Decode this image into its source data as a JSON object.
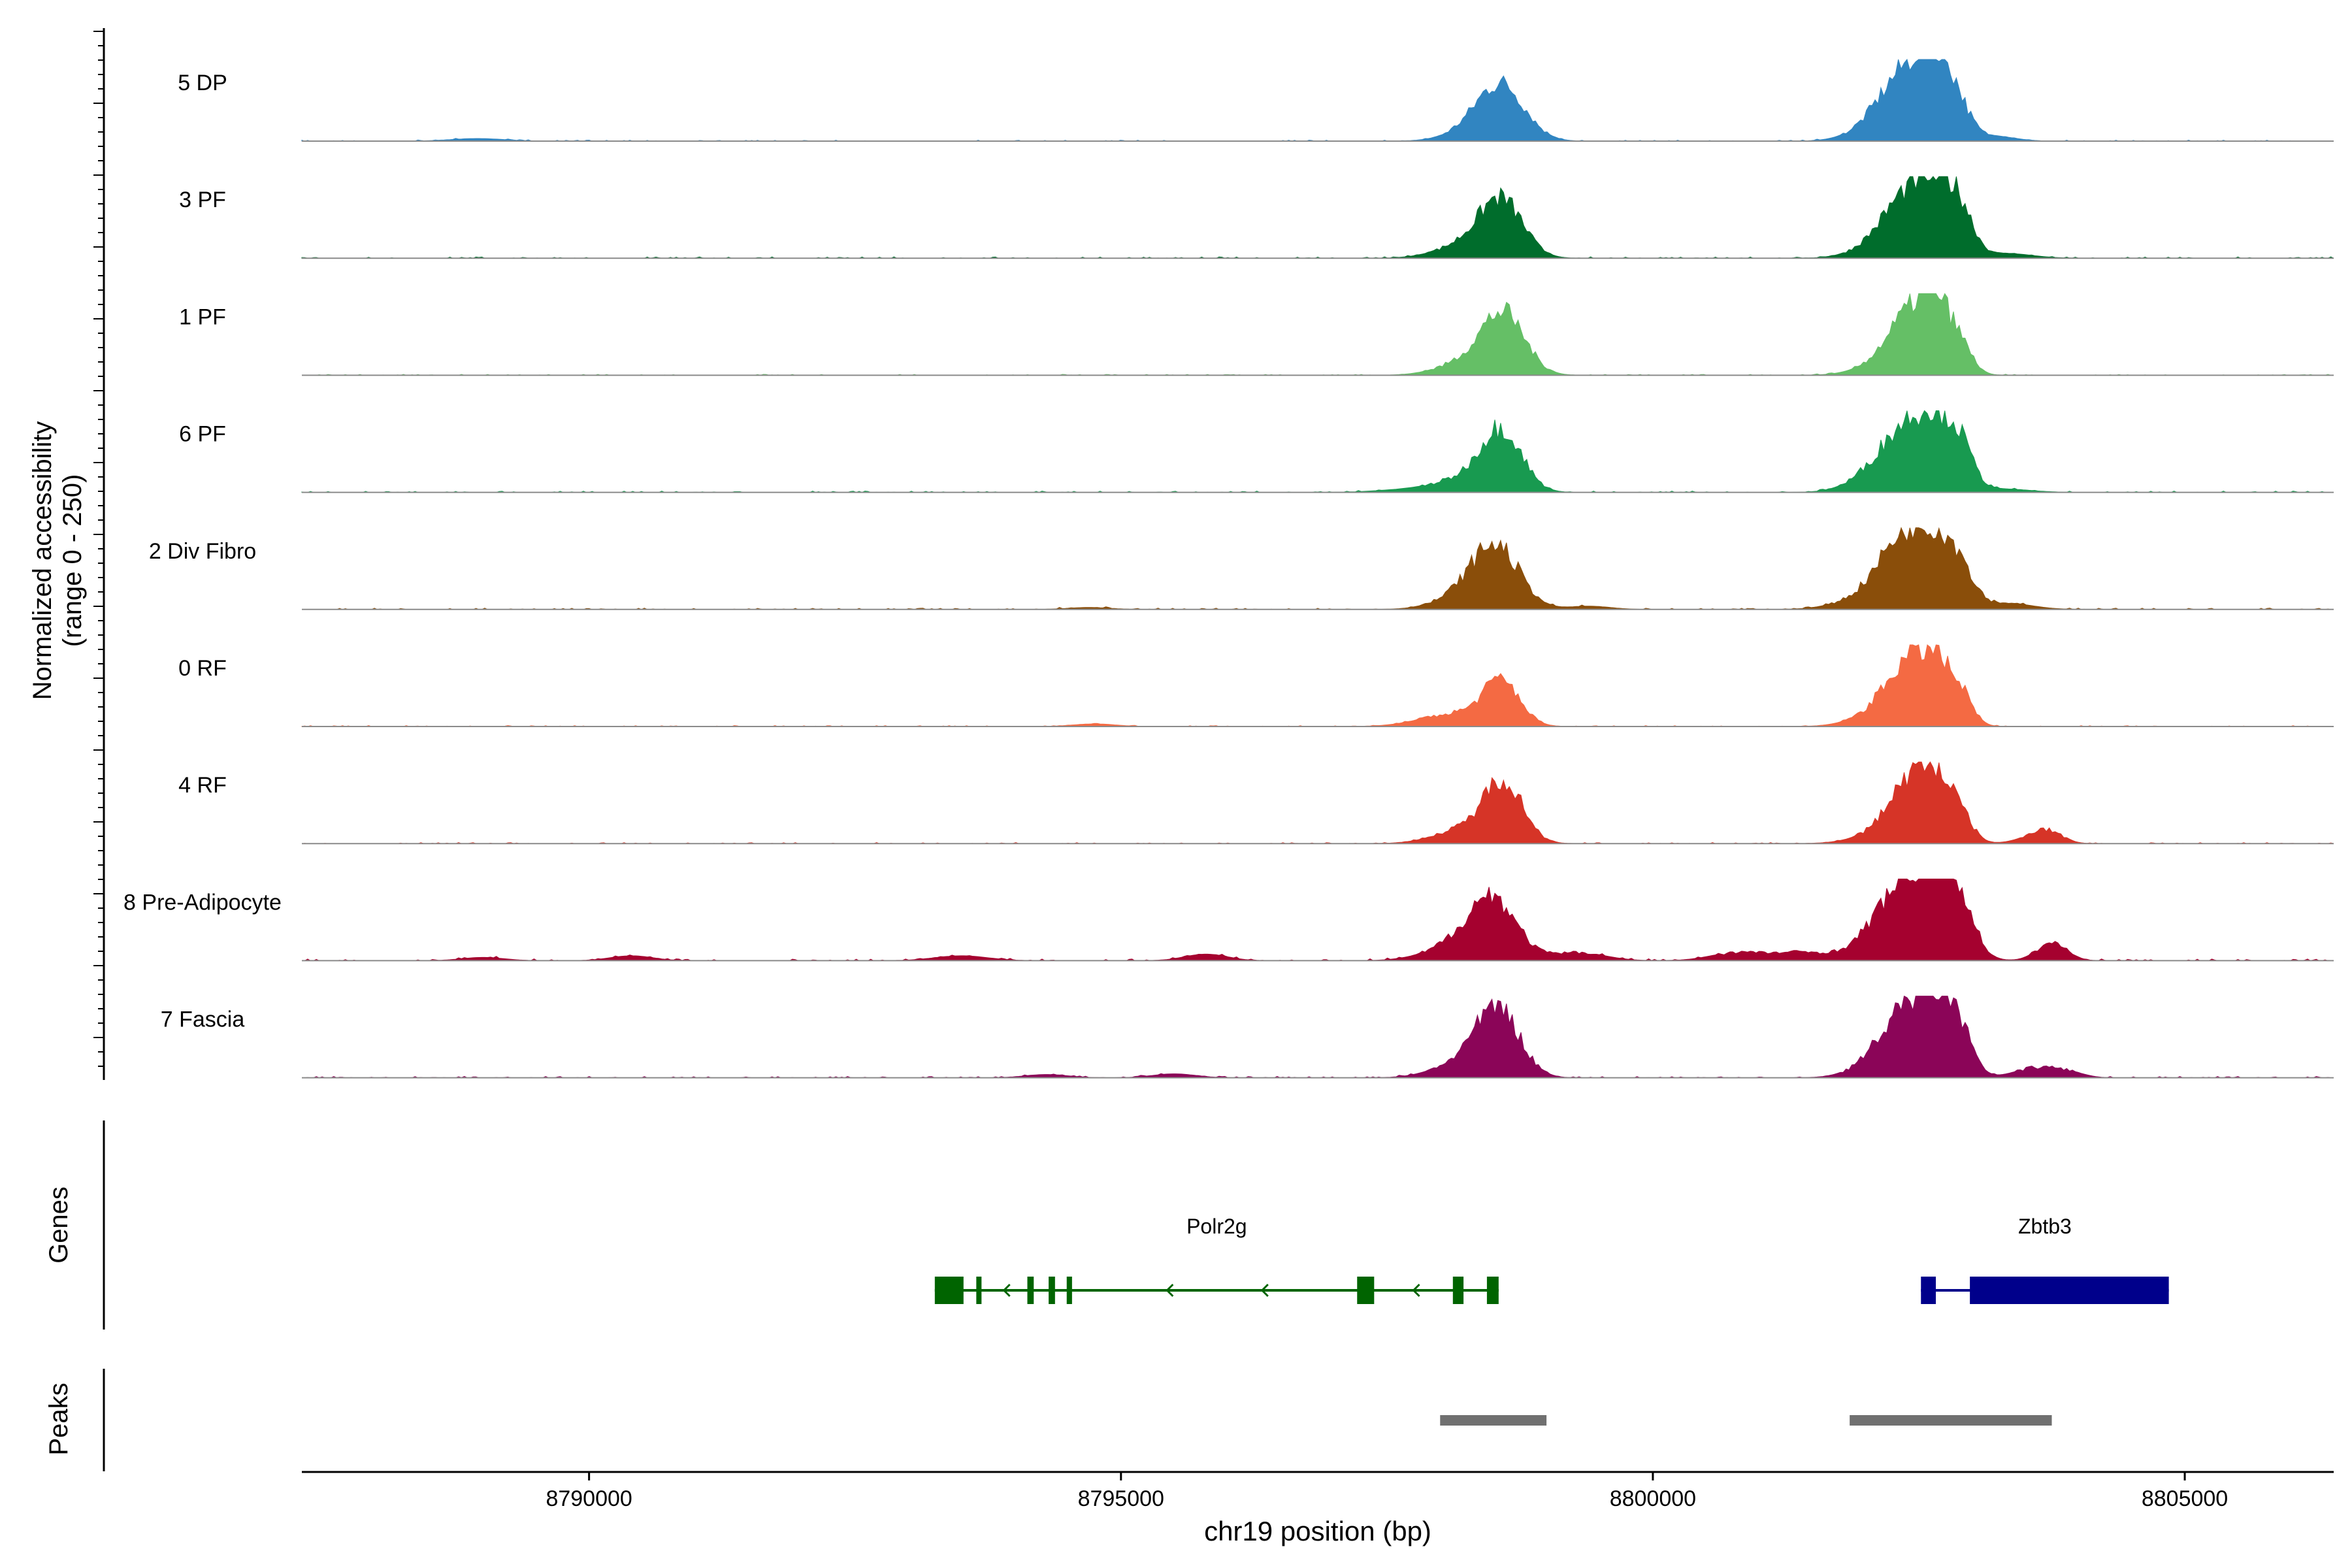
{
  "chart_data": {
    "type": "area",
    "ylabel_line1": "Normalized accessibility",
    "ylabel_line2": "(range 0 - 250)",
    "xlabel": "chr19 position (bp)",
    "xlim": [
      8787300,
      8806400
    ],
    "ylim": [
      0,
      250
    ],
    "x_ticks": [
      {
        "value": 8790000,
        "label": "8790000"
      },
      {
        "value": 8795000,
        "label": "8795000"
      },
      {
        "value": 8800000,
        "label": "8800000"
      },
      {
        "value": 8805000,
        "label": "8805000"
      }
    ],
    "series": [
      {
        "name": "5 DP",
        "color": "#3185C1",
        "noise": 3,
        "peaks": [
          [
            8798580,
            160,
            220
          ],
          [
            8798320,
            30,
            250
          ],
          [
            8802420,
            210,
            250
          ],
          [
            8802650,
            150,
            130
          ],
          [
            8802860,
            90,
            120
          ],
          [
            8802100,
            30,
            250
          ],
          [
            8803200,
            15,
            200
          ],
          [
            8788950,
            8,
            250
          ]
        ]
      },
      {
        "name": "3 PF",
        "color": "#006D2C",
        "noise": 4,
        "peaks": [
          [
            8798580,
            160,
            200
          ],
          [
            8798280,
            45,
            280
          ],
          [
            8802450,
            190,
            240
          ],
          [
            8802700,
            110,
            150
          ],
          [
            8802900,
            110,
            120
          ],
          [
            8802150,
            35,
            250
          ],
          [
            8803300,
            15,
            250
          ]
        ]
      },
      {
        "name": "1 PF",
        "color": "#65BF66",
        "noise": 3,
        "peaks": [
          [
            8798600,
            170,
            200
          ],
          [
            8798300,
            45,
            280
          ],
          [
            8802480,
            200,
            230
          ],
          [
            8802680,
            110,
            120
          ],
          [
            8802900,
            65,
            110
          ],
          [
            8802150,
            25,
            250
          ]
        ]
      },
      {
        "name": "6 PF",
        "color": "#189A50",
        "noise": 4,
        "peaks": [
          [
            8798580,
            180,
            190
          ],
          [
            8798250,
            40,
            280
          ],
          [
            8802450,
            200,
            260
          ],
          [
            8802700,
            100,
            150
          ],
          [
            8802900,
            95,
            120
          ],
          [
            8802100,
            40,
            250
          ],
          [
            8803300,
            10,
            250
          ],
          [
            8797700,
            8,
            300
          ]
        ]
      },
      {
        "name": "2 Div Fibro",
        "color": "#8A4E0A",
        "noise": 4,
        "peaks": [
          [
            8798530,
            170,
            220
          ],
          [
            8798280,
            45,
            280
          ],
          [
            8802400,
            210,
            230
          ],
          [
            8802700,
            120,
            150
          ],
          [
            8802900,
            95,
            130
          ],
          [
            8802100,
            45,
            300
          ],
          [
            8803300,
            20,
            250
          ],
          [
            8799400,
            10,
            200
          ],
          [
            8794700,
            6,
            200
          ]
        ]
      },
      {
        "name": "0 RF",
        "color": "#F46A43",
        "noise": 3,
        "peaks": [
          [
            8798580,
            130,
            170
          ],
          [
            8798150,
            40,
            320
          ],
          [
            8802450,
            200,
            230
          ],
          [
            8802680,
            90,
            120
          ],
          [
            8802900,
            80,
            110
          ],
          [
            8802100,
            30,
            250
          ],
          [
            8794750,
            8,
            200
          ]
        ]
      },
      {
        "name": "4 RF",
        "color": "#D63427",
        "noise": 3,
        "peaks": [
          [
            8798600,
            180,
            180
          ],
          [
            8798250,
            45,
            280
          ],
          [
            8802480,
            210,
            230
          ],
          [
            8802700,
            80,
            120
          ],
          [
            8802900,
            60,
            110
          ],
          [
            8802100,
            20,
            250
          ],
          [
            8803700,
            40,
            140
          ],
          [
            8803500,
            10,
            150
          ]
        ]
      },
      {
        "name": "8 Pre-Adipocyte",
        "color": "#A5012F",
        "noise": 5,
        "peaks": [
          [
            8798500,
            170,
            220
          ],
          [
            8798200,
            50,
            300
          ],
          [
            8802450,
            250,
            280
          ],
          [
            8802750,
            150,
            150
          ],
          [
            8802950,
            70,
            120
          ],
          [
            8802100,
            35,
            250
          ],
          [
            8803750,
            55,
            140
          ],
          [
            8799300,
            25,
            250
          ],
          [
            8800800,
            25,
            250
          ],
          [
            8801400,
            25,
            250
          ],
          [
            8795800,
            20,
            200
          ],
          [
            8793500,
            15,
            250
          ],
          [
            8790400,
            15,
            200
          ],
          [
            8789000,
            10,
            200
          ]
        ]
      },
      {
        "name": "7 Fascia",
        "color": "#8B0558",
        "noise": 4,
        "peaks": [
          [
            8798550,
            190,
            200
          ],
          [
            8798250,
            50,
            280
          ],
          [
            8802450,
            200,
            250
          ],
          [
            8802700,
            130,
            150
          ],
          [
            8802900,
            90,
            120
          ],
          [
            8802150,
            40,
            250
          ],
          [
            8803600,
            30,
            200
          ],
          [
            8803900,
            15,
            150
          ],
          [
            8795500,
            12,
            200
          ],
          [
            8794300,
            10,
            200
          ]
        ]
      }
    ]
  },
  "genes_track": {
    "title": "Genes",
    "genes": [
      {
        "name": "Polr2g",
        "color": "#006400",
        "start": 8793250,
        "end": 8798550,
        "strand": "-",
        "exons": [
          [
            8793250,
            8793520
          ],
          [
            8793640,
            8793680
          ],
          [
            8794120,
            8794180
          ],
          [
            8794320,
            8794380
          ],
          [
            8794490,
            8794540
          ],
          [
            8797220,
            8797380
          ],
          [
            8798120,
            8798220
          ],
          [
            8798440,
            8798550
          ]
        ]
      },
      {
        "name": "Zbtb3",
        "color": "#00008B",
        "start": 8802520,
        "end": 8804850,
        "strand": "+",
        "exons": [
          [
            8802520,
            8802660
          ],
          [
            8802980,
            8804850
          ]
        ]
      }
    ]
  },
  "peaks_track": {
    "title": "Peaks",
    "color": "#707070",
    "peaks": [
      [
        8798000,
        8799000
      ],
      [
        8801850,
        8803750
      ]
    ]
  }
}
